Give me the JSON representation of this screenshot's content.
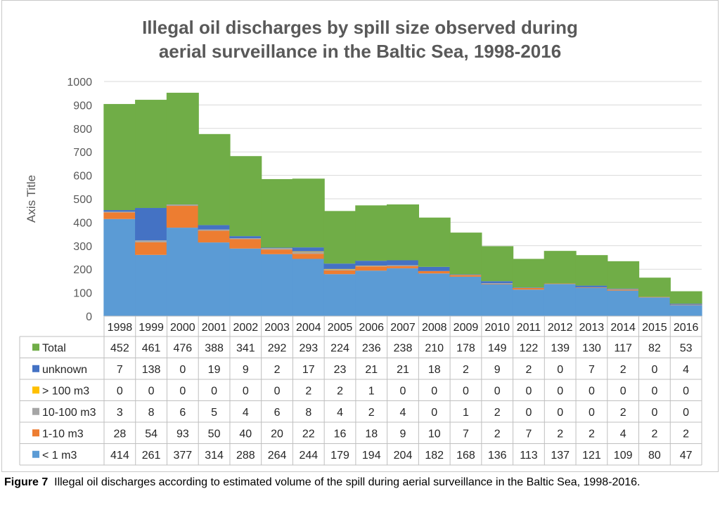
{
  "chart_data": {
    "type": "bar",
    "stacked": true,
    "title_line1": "Illegal oil discharges by spill size observed during",
    "title_line2": "aerial surveillance in the Baltic Sea, 1998-2016",
    "ylabel": "Axis Title",
    "ylim": [
      0,
      1000
    ],
    "yticks": [
      0,
      100,
      200,
      300,
      400,
      500,
      600,
      700,
      800,
      900,
      1000
    ],
    "grid": true,
    "legend_placement": "data-table",
    "categories": [
      "1998",
      "1999",
      "2000",
      "2001",
      "2002",
      "2003",
      "2004",
      "2005",
      "2006",
      "2007",
      "2008",
      "2009",
      "2010",
      "2011",
      "2012",
      "2013",
      "2014",
      "2015",
      "2016"
    ],
    "series": [
      {
        "name": "< 1 m3",
        "color": "#5b9bd5",
        "values": [
          414,
          261,
          377,
          314,
          288,
          264,
          244,
          179,
          194,
          204,
          182,
          168,
          136,
          113,
          137,
          121,
          109,
          80,
          47
        ]
      },
      {
        "name": "1-10 m3",
        "color": "#ed7d31",
        "values": [
          28,
          54,
          93,
          50,
          40,
          20,
          22,
          16,
          18,
          9,
          10,
          7,
          2,
          7,
          2,
          2,
          4,
          2,
          2
        ]
      },
      {
        "name": "10-100 m3",
        "color": "#a5a5a5",
        "values": [
          3,
          8,
          6,
          5,
          4,
          6,
          8,
          4,
          2,
          4,
          0,
          1,
          2,
          0,
          0,
          0,
          2,
          0,
          0
        ]
      },
      {
        "name": "> 100 m3",
        "color": "#ffc000",
        "values": [
          0,
          0,
          0,
          0,
          0,
          0,
          2,
          2,
          1,
          0,
          0,
          0,
          0,
          0,
          0,
          0,
          0,
          0,
          0
        ]
      },
      {
        "name": "unknown",
        "color": "#4472c4",
        "values": [
          7,
          138,
          0,
          19,
          9,
          2,
          17,
          23,
          21,
          21,
          18,
          2,
          9,
          2,
          0,
          7,
          2,
          0,
          4
        ]
      },
      {
        "name": "Total",
        "color": "#70ad47",
        "values": [
          452,
          461,
          476,
          388,
          341,
          292,
          293,
          224,
          236,
          238,
          210,
          178,
          149,
          122,
          139,
          130,
          117,
          82,
          53
        ]
      }
    ],
    "table_row_order": [
      "Total",
      "unknown",
      "> 100 m3",
      "10-100 m3",
      "1-10 m3",
      "< 1 m3"
    ]
  },
  "caption": {
    "label": "Figure 7",
    "text": "Illegal oil discharges according to estimated volume of the spill during aerial surveillance in the Baltic Sea, 1998-2016."
  }
}
